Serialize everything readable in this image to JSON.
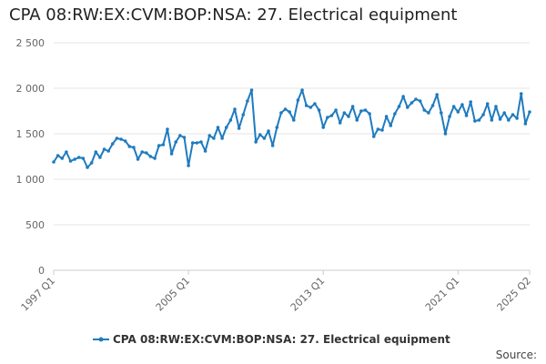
{
  "chart_data": {
    "type": "line",
    "title": "CPA 08:RW:EX:CVM:BOP:NSA: 27. Electrical equipment",
    "xlabel": "",
    "ylabel": "",
    "ylim": [
      0,
      2500
    ],
    "y_ticks": [
      0,
      500,
      1000,
      1500,
      2000,
      2500
    ],
    "y_tick_labels": [
      "0",
      "500",
      "1 000",
      "1 500",
      "2 000",
      "2 500"
    ],
    "x_tick_labels": [
      {
        "label": "1997 Q1",
        "index": 0
      },
      {
        "label": "2005 Q1",
        "index": 32
      },
      {
        "label": "2013 Q1",
        "index": 64
      },
      {
        "label": "2021 Q1",
        "index": 96
      },
      {
        "label": "2025 Q2",
        "index": 113
      }
    ],
    "grid": true,
    "legend_position": "bottom",
    "series": [
      {
        "name": "CPA 08:RW:EX:CVM:BOP:NSA: 27. Electrical equipment",
        "color": "#1f7bbf",
        "start": "1997 Q1",
        "frequency": "quarterly",
        "values": [
          1190,
          1260,
          1230,
          1300,
          1200,
          1220,
          1240,
          1230,
          1130,
          1180,
          1300,
          1240,
          1330,
          1310,
          1390,
          1450,
          1440,
          1420,
          1360,
          1350,
          1220,
          1300,
          1290,
          1250,
          1230,
          1370,
          1380,
          1550,
          1280,
          1410,
          1480,
          1460,
          1150,
          1400,
          1400,
          1410,
          1310,
          1480,
          1450,
          1570,
          1450,
          1570,
          1650,
          1770,
          1560,
          1710,
          1860,
          1980,
          1410,
          1490,
          1450,
          1530,
          1370,
          1570,
          1730,
          1770,
          1740,
          1650,
          1870,
          1980,
          1810,
          1790,
          1830,
          1760,
          1570,
          1680,
          1700,
          1760,
          1620,
          1730,
          1690,
          1800,
          1650,
          1750,
          1760,
          1720,
          1470,
          1550,
          1540,
          1690,
          1590,
          1720,
          1800,
          1910,
          1790,
          1840,
          1880,
          1860,
          1760,
          1730,
          1810,
          1930,
          1730,
          1500,
          1690,
          1800,
          1740,
          1820,
          1700,
          1850,
          1640,
          1650,
          1710,
          1830,
          1650,
          1800,
          1660,
          1730,
          1650,
          1710,
          1670,
          1940,
          1610,
          1740
        ]
      }
    ]
  },
  "legend": {
    "label": "CPA 08:RW:EX:CVM:BOP:NSA: 27. Electrical equipment"
  },
  "footer": {
    "source_label": "Source:"
  }
}
